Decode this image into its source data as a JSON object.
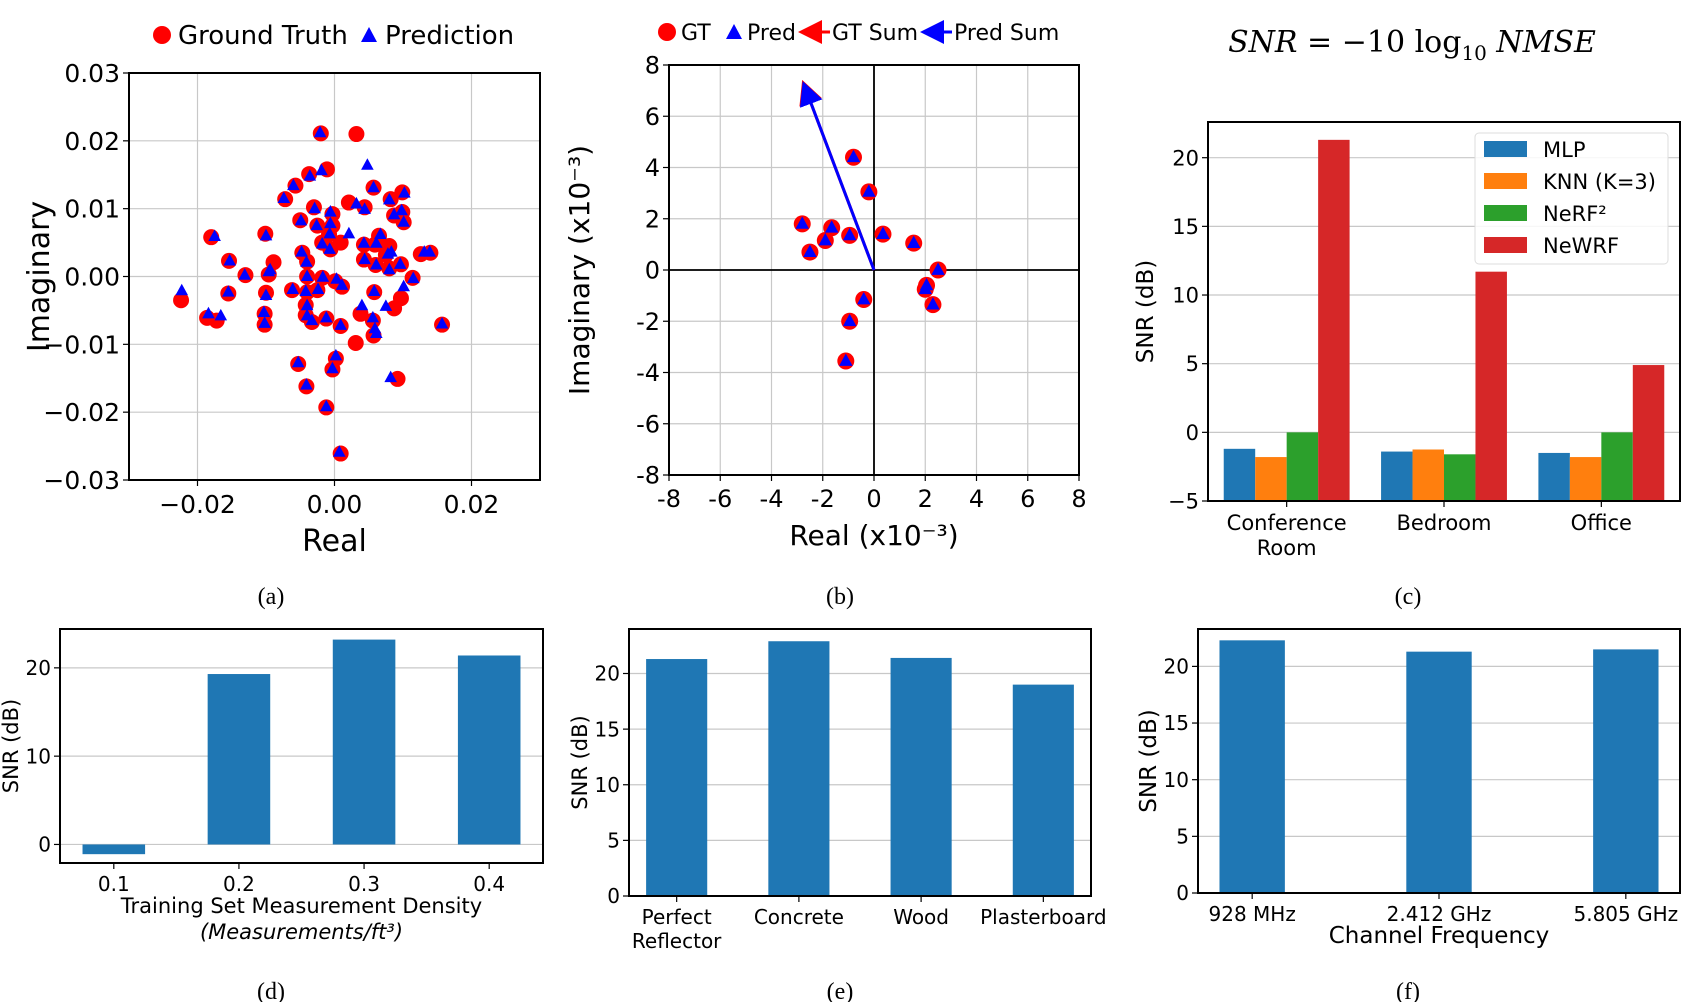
{
  "captions": [
    "(a)",
    "(b)",
    "(c)",
    "(d)",
    "(e)",
    "(f)"
  ],
  "formula": {
    "lhs": "SNR",
    "eq": " = −10 log",
    "sub": "10",
    "rhs": " NMSE"
  },
  "chart_data": [
    {
      "type": "scatter",
      "xlabel": "Real",
      "ylabel": "Imaginary",
      "xlim": [
        -0.03,
        0.03
      ],
      "ylim": [
        -0.03,
        0.03
      ],
      "xticks": [
        -0.02,
        0,
        0.02
      ],
      "xtick_labels": [
        "−0.02",
        "0.00",
        "0.02"
      ],
      "yticks": [
        0.03,
        0.02,
        0.01,
        0,
        -0.01,
        -0.02,
        -0.03
      ],
      "ytick_labels": [
        "0.03",
        "0.02",
        "0.01",
        "0.00",
        "−0.01",
        "−0.02",
        "−0.03"
      ],
      "grid": true,
      "legend_position": "top",
      "series": [
        {
          "name": "Ground Truth",
          "marker": "circle",
          "color": "#ff0000",
          "points": [
            [
              -0.002,
              0.0211
            ],
            [
              0.0032,
              0.021
            ],
            [
              -0.0011,
              0.0158
            ],
            [
              -0.0037,
              0.0151
            ],
            [
              -0.0057,
              0.0134
            ],
            [
              -0.0072,
              0.0114
            ],
            [
              0.0057,
              0.0131
            ],
            [
              0.0021,
              0.0109
            ],
            [
              0.0044,
              0.0102
            ],
            [
              0.0082,
              0.0114
            ],
            [
              0.0099,
              0.0124
            ],
            [
              -0.003,
              0.0102
            ],
            [
              -0.005,
              0.0083
            ],
            [
              -0.0003,
              0.0092
            ],
            [
              -0.0025,
              0.0075
            ],
            [
              -0.0003,
              0.0075
            ],
            [
              -0.0008,
              0.0062
            ],
            [
              0.0087,
              0.009
            ],
            [
              0.0099,
              0.0095
            ],
            [
              0.0101,
              0.008
            ],
            [
              -0.018,
              0.0058
            ],
            [
              -0.0101,
              0.0063
            ],
            [
              -0.0018,
              0.005
            ],
            [
              -0.0006,
              0.004
            ],
            [
              0.0009,
              0.005
            ],
            [
              0.0043,
              0.0047
            ],
            [
              0.0065,
              0.006
            ],
            [
              0.0059,
              0.0047
            ],
            [
              0.008,
              0.0045
            ],
            [
              -0.0047,
              0.0035
            ],
            [
              0.0075,
              0.0032
            ],
            [
              0.0126,
              0.0033
            ],
            [
              0.014,
              0.0035
            ],
            [
              -0.0154,
              0.0023
            ],
            [
              -0.0089,
              0.0021
            ],
            [
              -0.004,
              0.0022
            ],
            [
              0.0043,
              0.0025
            ],
            [
              0.006,
              0.0017
            ],
            [
              0.008,
              0.0012
            ],
            [
              0.0097,
              0.0018
            ],
            [
              -0.013,
              0.0002
            ],
            [
              -0.0096,
              0.0003
            ],
            [
              -0.004,
              0.0
            ],
            [
              -0.0018,
              -0.0002
            ],
            [
              0.0001,
              -0.0007
            ],
            [
              0.0011,
              -0.0015
            ],
            [
              0.0114,
              -0.0002
            ],
            [
              -0.0224,
              -0.0035
            ],
            [
              -0.0155,
              -0.0025
            ],
            [
              -0.01,
              -0.0024
            ],
            [
              -0.0062,
              -0.002
            ],
            [
              -0.004,
              -0.0023
            ],
            [
              -0.0025,
              -0.002
            ],
            [
              0.0058,
              -0.0023
            ],
            [
              0.0097,
              -0.0032
            ],
            [
              0.0087,
              -0.0047
            ],
            [
              -0.0186,
              -0.0061
            ],
            [
              -0.0172,
              -0.0065
            ],
            [
              -0.0102,
              -0.0055
            ],
            [
              -0.0102,
              -0.0071
            ],
            [
              -0.0042,
              -0.0042
            ],
            [
              -0.0042,
              -0.0057
            ],
            [
              -0.0033,
              -0.0067
            ],
            [
              -0.0012,
              -0.0062
            ],
            [
              0.0009,
              -0.0073
            ],
            [
              0.0038,
              -0.0055
            ],
            [
              0.0056,
              -0.0065
            ],
            [
              0.0057,
              -0.0087
            ],
            [
              0.0031,
              -0.0098
            ],
            [
              0.0157,
              -0.0071
            ],
            [
              -0.0053,
              -0.0129
            ],
            [
              0.0002,
              -0.0121
            ],
            [
              -0.0003,
              -0.0137
            ],
            [
              0.0092,
              -0.0151
            ],
            [
              -0.0041,
              -0.0162
            ],
            [
              -0.0012,
              -0.0193
            ],
            [
              0.0009,
              -0.0261
            ]
          ]
        },
        {
          "name": "Prediction",
          "marker": "triangle",
          "color": "#0000ff",
          "points": [
            [
              -0.0021,
              0.0212
            ],
            [
              0.0048,
              0.0164
            ],
            [
              -0.0019,
              0.0156
            ],
            [
              -0.0036,
              0.0148
            ],
            [
              -0.006,
              0.0134
            ],
            [
              -0.0074,
              0.0115
            ],
            [
              0.0057,
              0.0131
            ],
            [
              0.0032,
              0.0107
            ],
            [
              0.0044,
              0.0099
            ],
            [
              0.008,
              0.0113
            ],
            [
              0.0102,
              0.0123
            ],
            [
              -0.0029,
              0.01
            ],
            [
              -0.0049,
              0.0082
            ],
            [
              -0.0006,
              0.0095
            ],
            [
              -0.0026,
              0.0075
            ],
            [
              -0.0006,
              0.0078
            ],
            [
              -0.0007,
              0.0063
            ],
            [
              0.0087,
              0.0091
            ],
            [
              0.0098,
              0.0097
            ],
            [
              0.0101,
              0.008
            ],
            [
              -0.0175,
              0.0059
            ],
            [
              -0.01,
              0.006
            ],
            [
              -0.0018,
              0.0048
            ],
            [
              -0.0007,
              0.004
            ],
            [
              0.0021,
              0.0063
            ],
            [
              0.0043,
              0.0049
            ],
            [
              0.0067,
              0.0062
            ],
            [
              0.0061,
              0.0049
            ],
            [
              0.0083,
              0.0036
            ],
            [
              -0.0048,
              0.0036
            ],
            [
              0.0078,
              0.0033
            ],
            [
              0.0131,
              0.0036
            ],
            [
              0.0139,
              0.0036
            ],
            [
              -0.0153,
              0.0023
            ],
            [
              -0.0094,
              0.001
            ],
            [
              -0.0041,
              0.0021
            ],
            [
              0.0044,
              0.0025
            ],
            [
              0.0061,
              0.0017
            ],
            [
              0.008,
              0.001
            ],
            [
              0.0096,
              0.0018
            ],
            [
              -0.0131,
              0.0002
            ],
            [
              -0.0096,
              0.0007
            ],
            [
              -0.004,
              0.0
            ],
            [
              -0.0017,
              -0.0001
            ],
            [
              0.0003,
              -0.0004
            ],
            [
              0.0011,
              -0.0013
            ],
            [
              0.0115,
              -0.0003
            ],
            [
              -0.0223,
              -0.0021
            ],
            [
              -0.0155,
              -0.0023
            ],
            [
              -0.01,
              -0.0028
            ],
            [
              -0.0061,
              -0.0019
            ],
            [
              -0.0042,
              -0.0022
            ],
            [
              -0.0024,
              -0.0019
            ],
            [
              0.0058,
              -0.0022
            ],
            [
              0.0101,
              -0.0015
            ],
            [
              0.0075,
              -0.0044
            ],
            [
              -0.0184,
              -0.0055
            ],
            [
              -0.0166,
              -0.0058
            ],
            [
              -0.0103,
              -0.0053
            ],
            [
              -0.0102,
              -0.0069
            ],
            [
              -0.004,
              -0.0043
            ],
            [
              -0.004,
              -0.0058
            ],
            [
              -0.0033,
              -0.0065
            ],
            [
              -0.0012,
              -0.0061
            ],
            [
              0.0009,
              -0.0072
            ],
            [
              0.004,
              -0.0043
            ],
            [
              0.0056,
              -0.0061
            ],
            [
              0.0061,
              -0.0084
            ],
            [
              0.0059,
              -0.0077
            ],
            [
              0.0157,
              -0.007
            ],
            [
              -0.0053,
              -0.0127
            ],
            [
              0.0002,
              -0.0117
            ],
            [
              -0.0003,
              -0.0136
            ],
            [
              0.0082,
              -0.0149
            ],
            [
              -0.0041,
              -0.016
            ],
            [
              -0.0012,
              -0.0192
            ],
            [
              0.0007,
              -0.0259
            ]
          ]
        }
      ]
    },
    {
      "type": "scatter",
      "xlabel": "Real (x10⁻³)",
      "ylabel": "Imaginary (x10⁻³)",
      "xlim": [
        -8,
        8
      ],
      "ylim": [
        -8,
        8
      ],
      "xticks": [
        -8,
        -6,
        -4,
        -2,
        0,
        2,
        4,
        6,
        8
      ],
      "xtick_labels": [
        "-8",
        "-6",
        "-4",
        "-2",
        "0",
        "2",
        "4",
        "6",
        "8"
      ],
      "yticks": [
        8,
        6,
        4,
        2,
        0,
        -2,
        -4,
        -6,
        -8
      ],
      "ytick_labels": [
        "8",
        "6",
        "4",
        "2",
        "0",
        "-2",
        "-4",
        "-6",
        "-8"
      ],
      "grid": true,
      "legend_position": "top",
      "series": [
        {
          "name": "GT",
          "marker": "circle",
          "color": "#ff0000",
          "points": [
            [
              -2.8,
              1.8
            ],
            [
              -2.5,
              0.7
            ],
            [
              -1.9,
              1.15
            ],
            [
              -1.65,
              1.65
            ],
            [
              -0.95,
              1.35
            ],
            [
              -0.8,
              4.4
            ],
            [
              -0.2,
              3.05
            ],
            [
              0.35,
              1.4
            ],
            [
              1.55,
              1.05
            ],
            [
              2.5,
              0.0
            ],
            [
              2.05,
              -0.6
            ],
            [
              2.0,
              -0.75
            ],
            [
              2.3,
              -1.35
            ],
            [
              -0.4,
              -1.15
            ],
            [
              -0.95,
              -2.0
            ],
            [
              -1.1,
              -3.55
            ]
          ]
        },
        {
          "name": "Pred",
          "marker": "triangle",
          "color": "#0000ff",
          "points": [
            [
              -2.8,
              1.8
            ],
            [
              -2.5,
              0.7
            ],
            [
              -1.9,
              1.15
            ],
            [
              -1.65,
              1.65
            ],
            [
              -0.95,
              1.35
            ],
            [
              -0.8,
              4.4
            ],
            [
              -0.2,
              3.05
            ],
            [
              0.35,
              1.4
            ],
            [
              1.55,
              1.05
            ],
            [
              2.5,
              0.0
            ],
            [
              2.05,
              -0.6
            ],
            [
              2.0,
              -0.75
            ],
            [
              2.3,
              -1.35
            ],
            [
              -0.4,
              -1.15
            ],
            [
              -0.95,
              -2.0
            ],
            [
              -1.1,
              -3.55
            ]
          ]
        }
      ],
      "arrows": [
        {
          "name": "GT Sum",
          "color": "#ff0000",
          "from": [
            0,
            0
          ],
          "to": [
            -2.72,
            7.2
          ]
        },
        {
          "name": "Pred Sum",
          "color": "#0000ff",
          "from": [
            0,
            0
          ],
          "to": [
            -2.7,
            7.15
          ]
        }
      ]
    },
    {
      "type": "bar",
      "title": "",
      "ylabel": "SNR (dB)",
      "categories": [
        "Conference\nRoom",
        "Bedroom",
        "Office"
      ],
      "ylim": [
        -5,
        22.6
      ],
      "yticks": [
        20,
        15,
        10,
        5,
        0,
        -5
      ],
      "ytick_labels": [
        "20",
        "15",
        "10",
        "5",
        "0",
        "−5"
      ],
      "grid": true,
      "legend_position": "top-right",
      "series": [
        {
          "name": "MLP",
          "color": "#1f77b4",
          "values": [
            -1.2,
            -1.4,
            -1.5
          ]
        },
        {
          "name": "KNN (K=3)",
          "color": "#ff7f0e",
          "values": [
            -1.8,
            -1.25,
            -1.8
          ]
        },
        {
          "name": "NeRF²",
          "color": "#2ca02c",
          "values": [
            0.0,
            -1.6,
            0.0
          ]
        },
        {
          "name": "NeWRF",
          "color": "#d62728",
          "values": [
            21.3,
            11.7,
            4.9
          ]
        }
      ]
    },
    {
      "type": "bar",
      "xlabel": "Training Set Measurement Density",
      "xlabel_unit": "(Measurements/ft³)",
      "ylabel": "SNR (dB)",
      "categories": [
        "0.1",
        "0.2",
        "0.3",
        "0.4"
      ],
      "values": [
        -1.1,
        19.3,
        23.2,
        21.4
      ],
      "color": "#1f77b4",
      "ylim": [
        -2.1,
        24.4
      ],
      "yticks": [
        20,
        10,
        0
      ],
      "ytick_labels": [
        "20",
        "10",
        "0"
      ],
      "grid": true
    },
    {
      "type": "bar",
      "ylabel": "SNR (dB)",
      "categories": [
        "Perfect\nReflector",
        "Concrete",
        "Wood",
        "Plasterboard"
      ],
      "values": [
        21.3,
        22.9,
        21.4,
        19.0
      ],
      "color": "#1f77b4",
      "ylim": [
        0,
        24
      ],
      "yticks": [
        20,
        15,
        10,
        5,
        0
      ],
      "ytick_labels": [
        "20",
        "15",
        "10",
        "5",
        "0"
      ],
      "grid": true
    },
    {
      "type": "bar",
      "xlabel": "Channel Frequency",
      "ylabel": "SNR (dB)",
      "categories": [
        "928 MHz",
        "2.412 GHz",
        "5.805 GHz"
      ],
      "values": [
        22.3,
        21.3,
        21.5
      ],
      "color": "#1f77b4",
      "ylim": [
        0,
        23.3
      ],
      "yticks": [
        20,
        15,
        10,
        5,
        0
      ],
      "ytick_labels": [
        "20",
        "15",
        "10",
        "5",
        "0"
      ],
      "grid": true
    }
  ]
}
